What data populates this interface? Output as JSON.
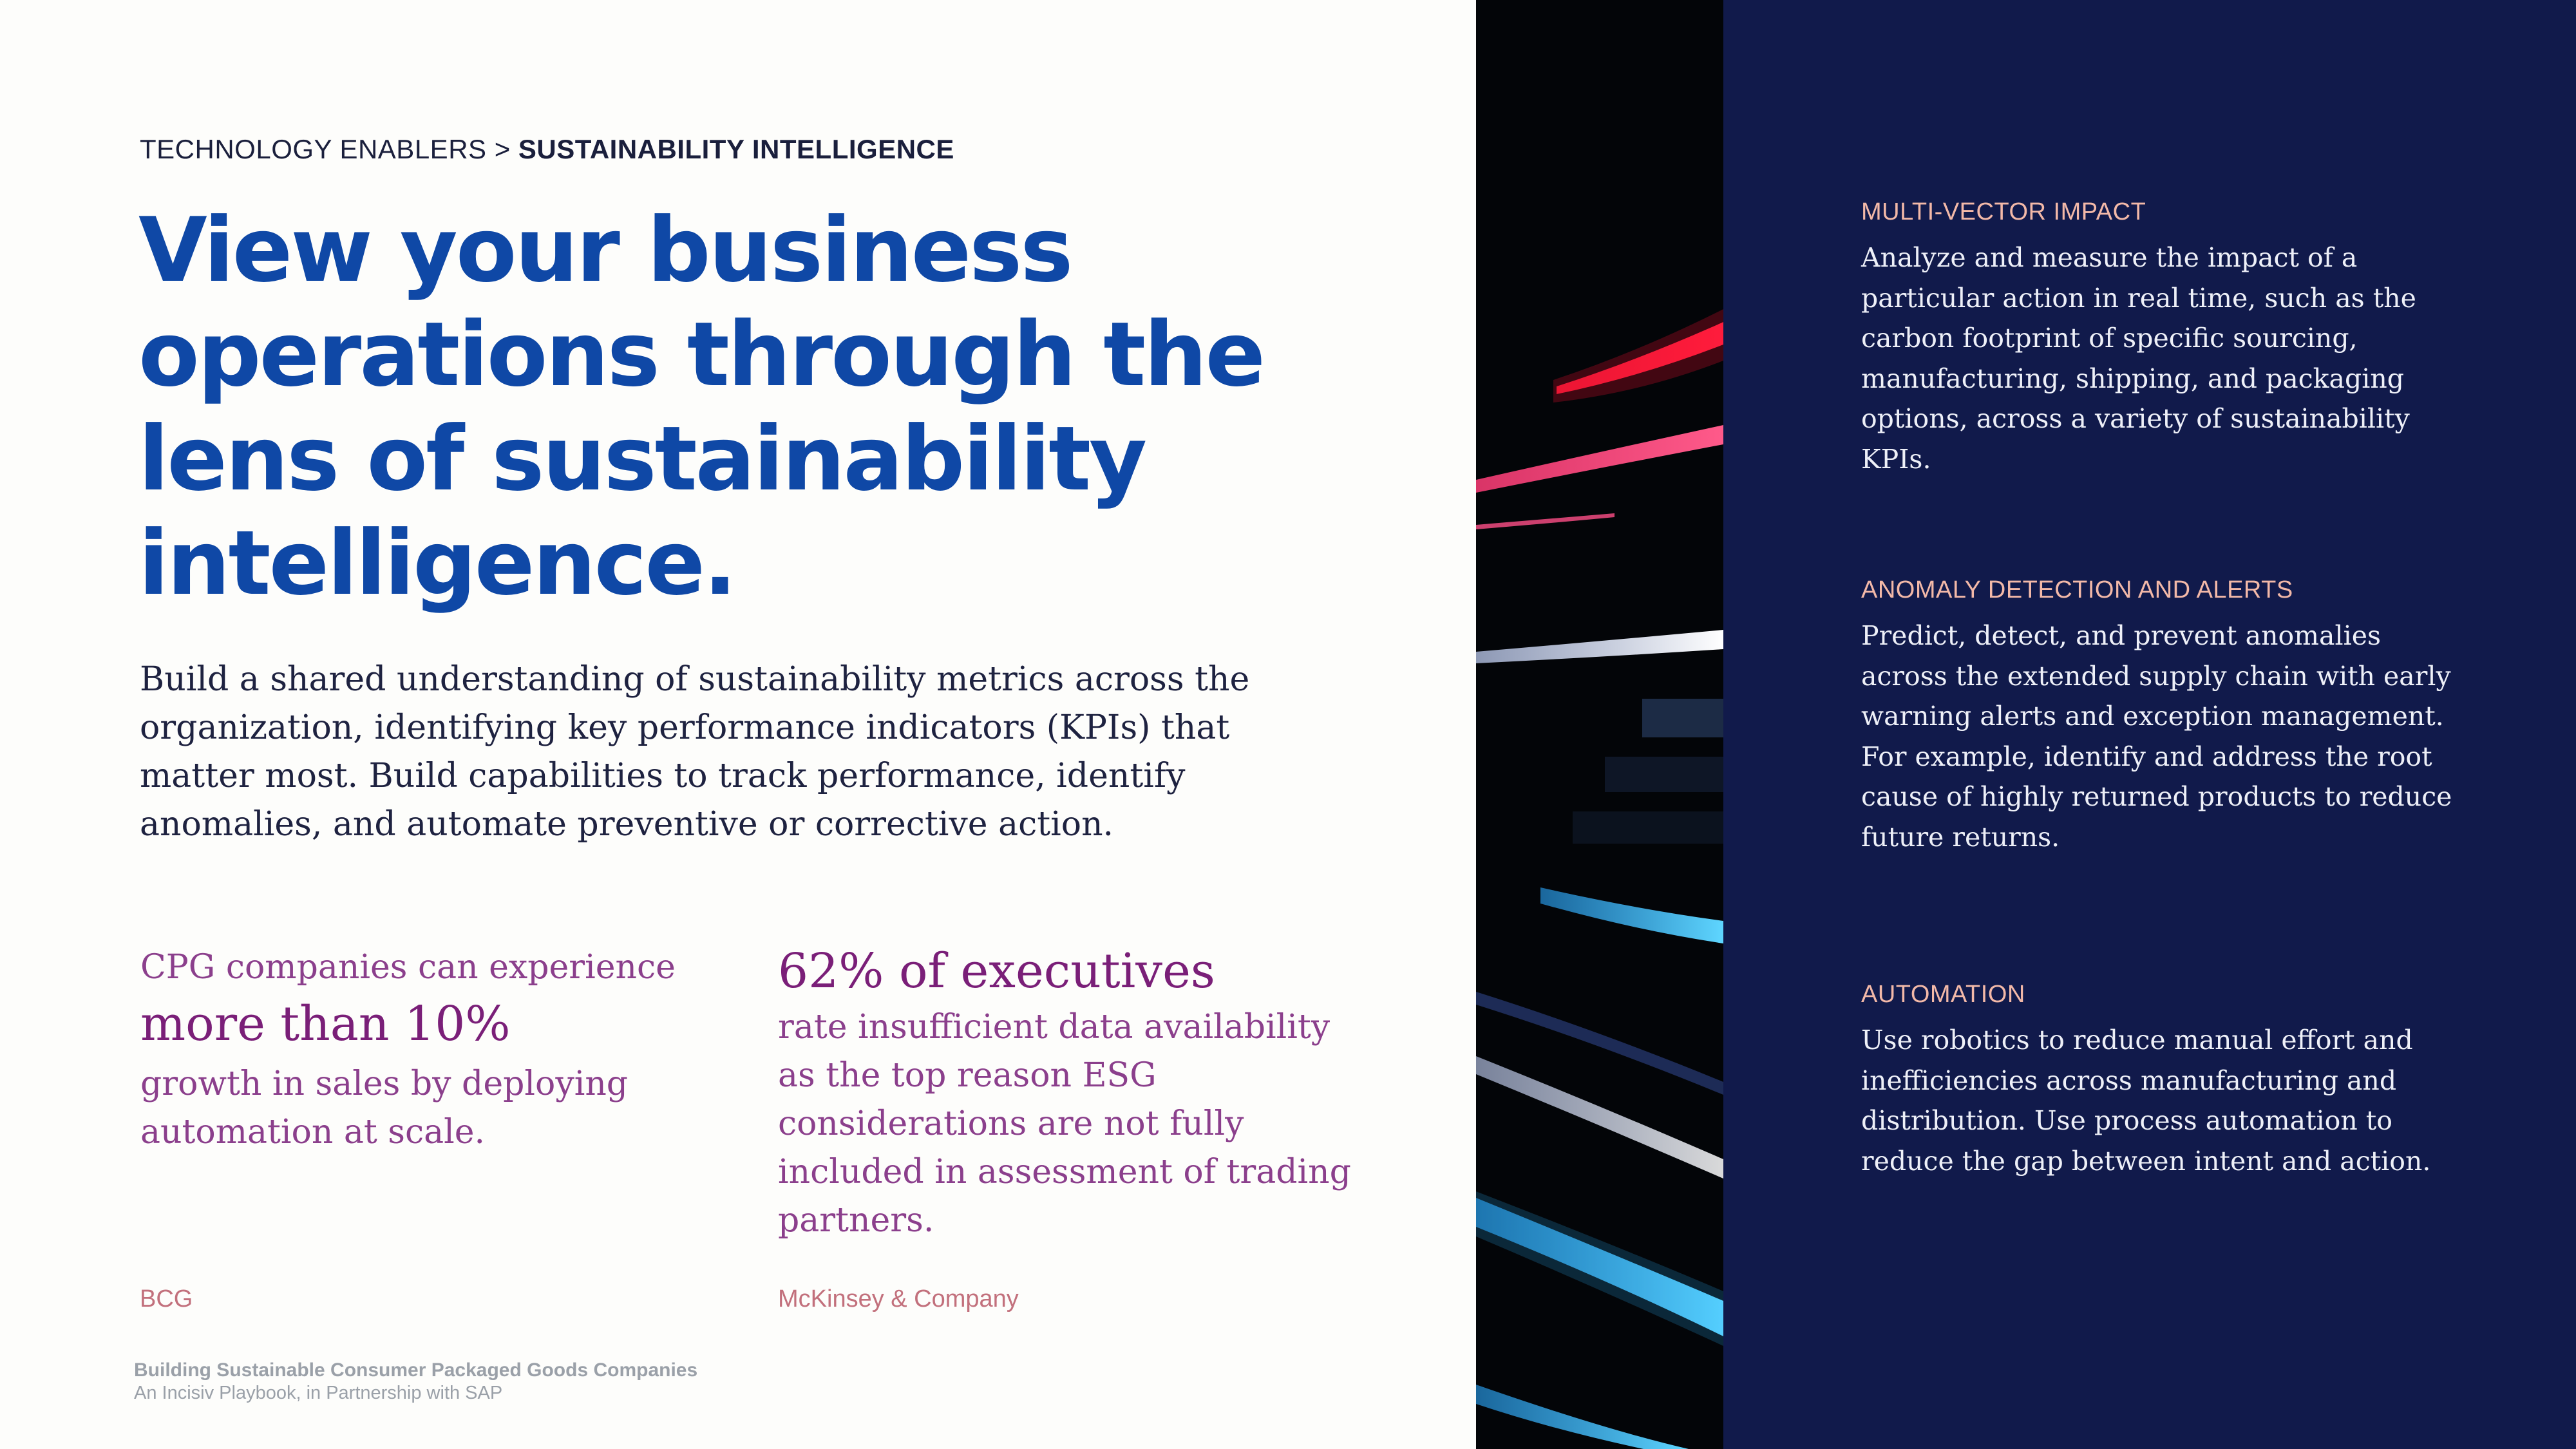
{
  "breadcrumb": {
    "parent": "TECHNOLOGY ENABLERS",
    "separator": ">",
    "current": "SUSTAINABILITY INTELLIGENCE"
  },
  "headline": "View your business operations through the lens of sustainability intelligence.",
  "intro": "Build a shared understanding of sustainability metrics across the organization, identifying key performance indicators (KPIs) that matter most. Build capabilities to track performance, identify anomalies, and automate preventive or corrective action.",
  "stats": [
    {
      "pre": "CPG companies can experience",
      "highlight": "more than 10%",
      "post": "growth in sales by deploying automation at scale.",
      "source": "BCG"
    },
    {
      "pre": "",
      "highlight": "62% of executives",
      "post": "rate insufficient data availability as the top reason ESG considerations are not fully included in assessment of trading partners.",
      "source": "McKinsey & Company"
    }
  ],
  "footer": {
    "title": "Building Sustainable Consumer Packaged Goods Companies",
    "subtitle": "An Incisiv Playbook, in Partnership with SAP"
  },
  "features": [
    {
      "title": "MULTI-VECTOR IMPACT",
      "body": "Analyze and measure the impact of a particular action in real time, such as the carbon footprint of specific sourcing, manufacturing, shipping, and packaging options, across a variety of sustainability KPIs."
    },
    {
      "title": "ANOMALY DETECTION AND ALERTS",
      "body": "Predict, detect, and prevent anomalies across the extended supply chain with early warning alerts and exception management. For example, identify and address the root cause of highly returned products to reduce future returns."
    },
    {
      "title": "AUTOMATION",
      "body": "Use robotics to reduce manual effort and inefficiencies across manufacturing and distribution. Use process automation to reduce the gap between intent and action."
    }
  ],
  "colors": {
    "headline": "#0f48a6",
    "stat_text": "#8b3f8c",
    "source": "#c2707c",
    "panel_bg": "#111a4b",
    "feature_title": "#f3b9a8"
  }
}
